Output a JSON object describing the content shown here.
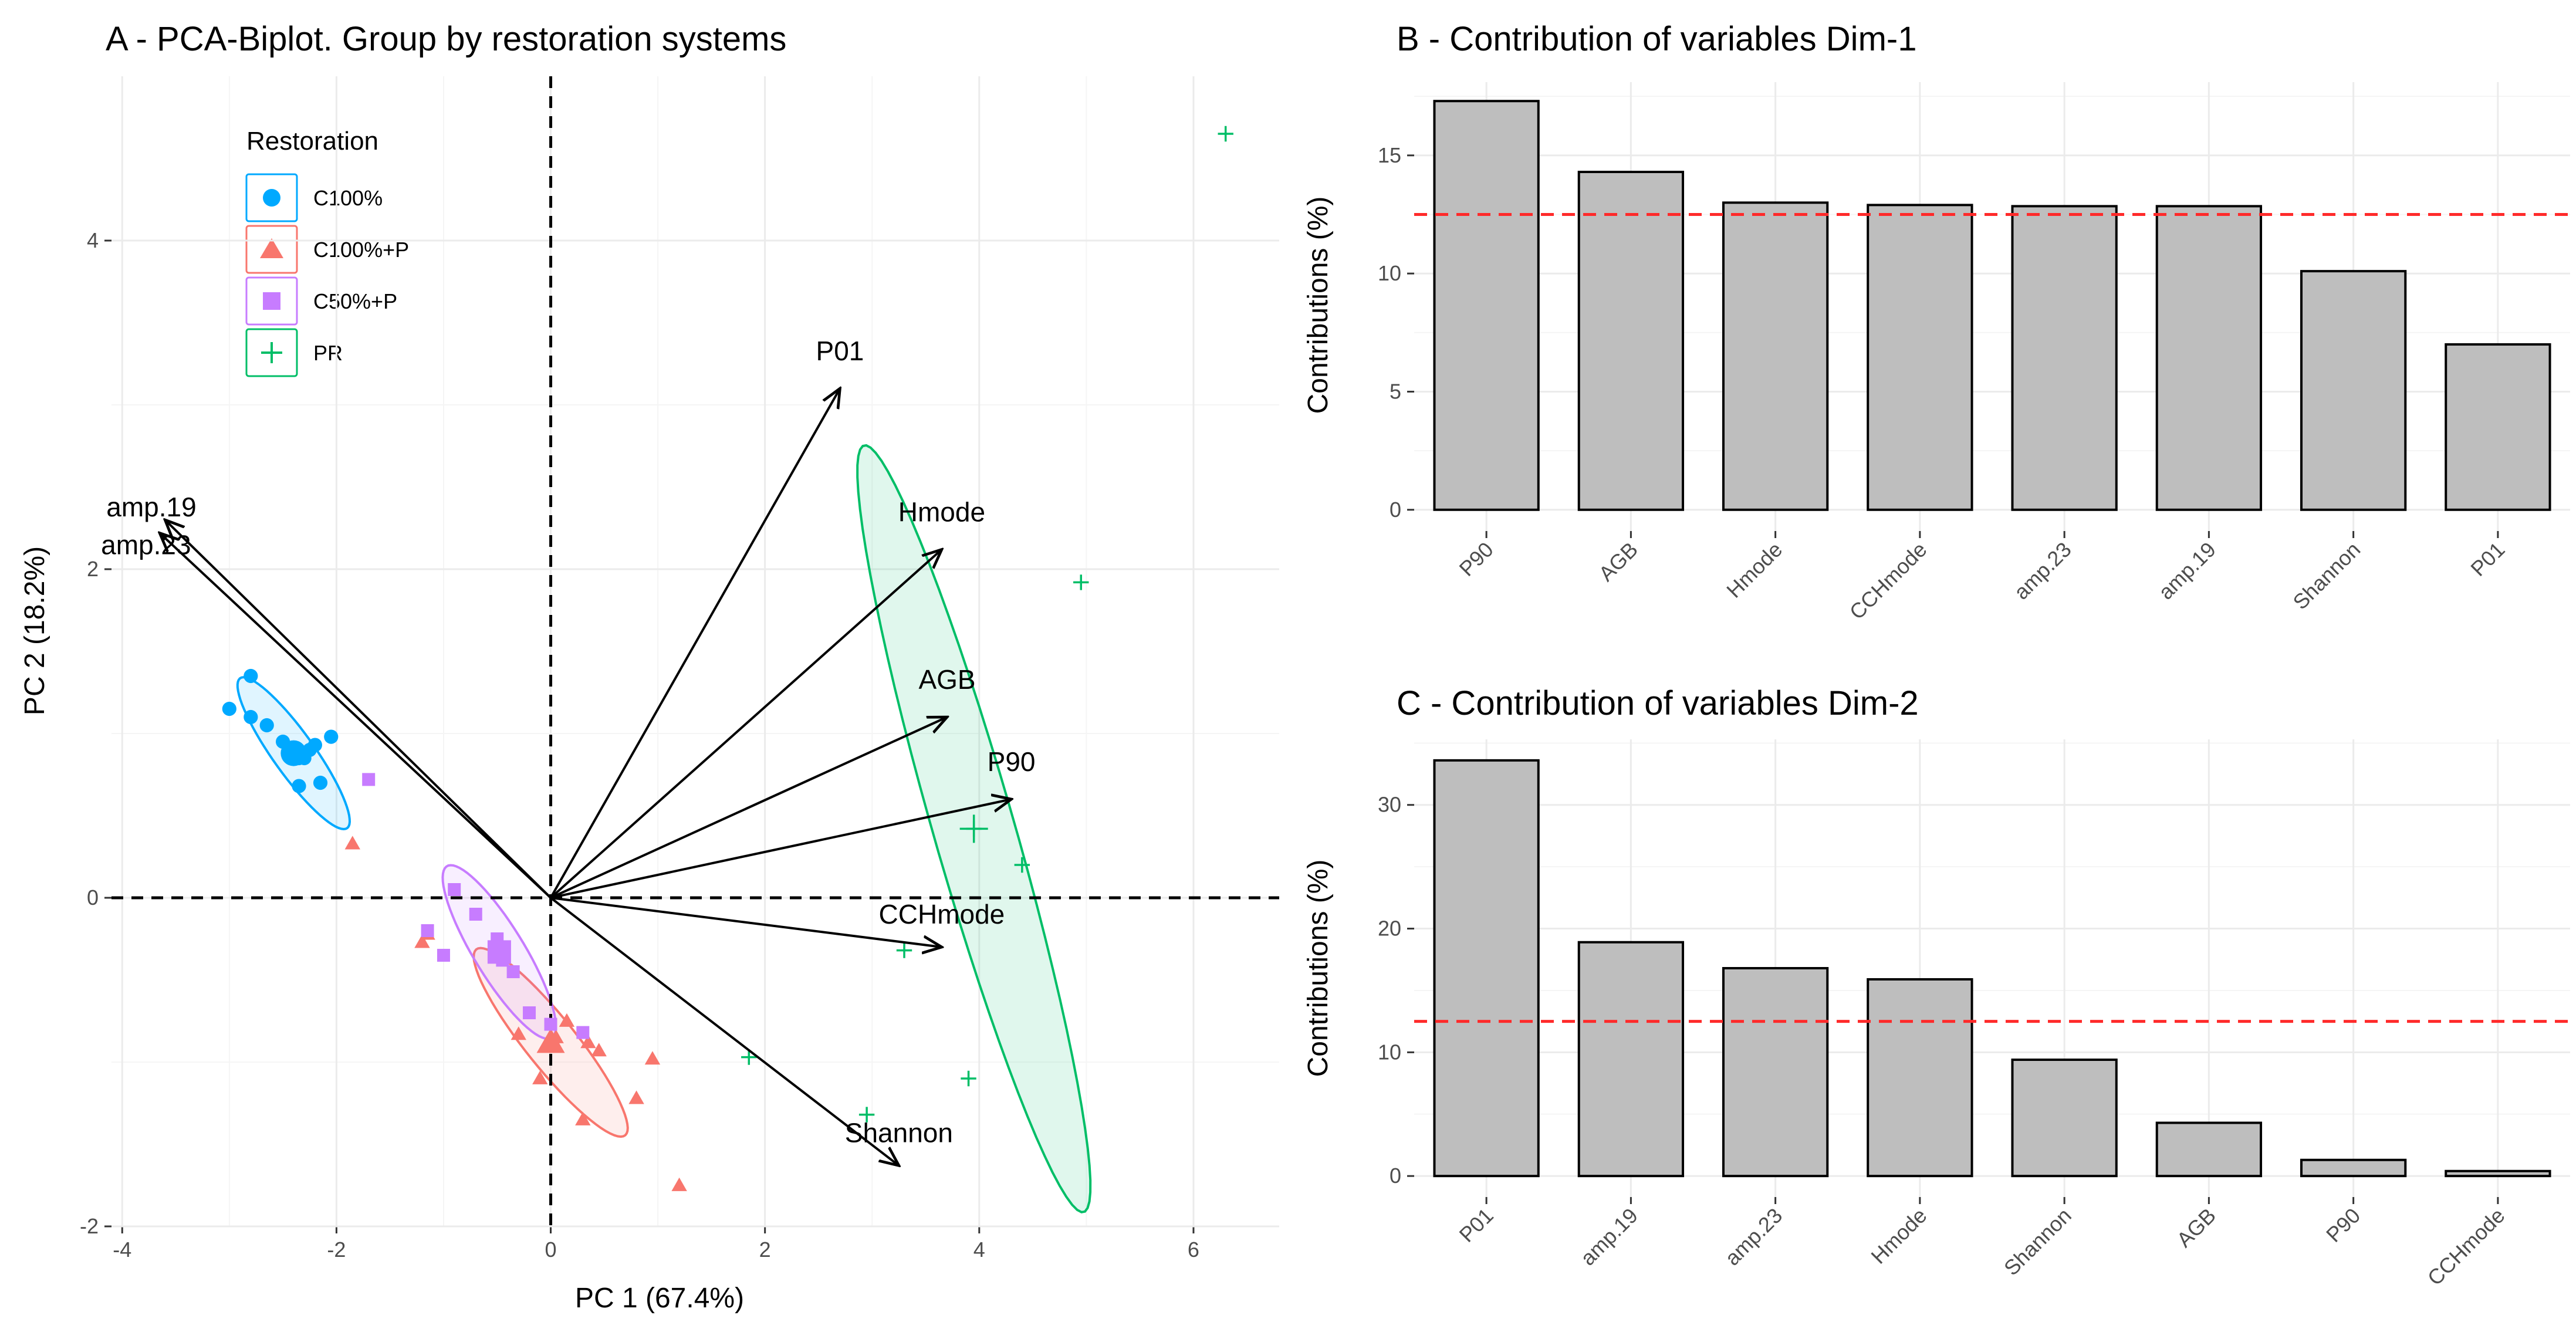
{
  "chart_data": [
    {
      "type": "scatter",
      "title": "A - PCA-Biplot. Group by restoration systems",
      "xlabel": "PC 1 (67.4%)",
      "ylabel": "PC 2 (18.2%)",
      "xlim": [
        -4.1,
        6.8
      ],
      "ylim": [
        -2.0,
        5.0
      ],
      "x_ticks": [
        -4,
        -2,
        0,
        2,
        4,
        6
      ],
      "y_ticks": [
        -2,
        0,
        2,
        4
      ],
      "x_tick_labels": [
        "-4",
        "-2",
        "0",
        "2",
        "4",
        "6"
      ],
      "y_tick_labels": [
        "-2",
        "0",
        "2",
        "4"
      ],
      "legend": {
        "title": "Restoration",
        "position": "top-left",
        "entries": [
          {
            "name": "C100%",
            "shape": "circle",
            "color": "#00a9ff"
          },
          {
            "name": "C100%+P",
            "shape": "triangle",
            "color": "#f8766d"
          },
          {
            "name": "C50%+P",
            "shape": "square",
            "color": "#c77cff"
          },
          {
            "name": "PR",
            "shape": "cross",
            "color": "#00be67"
          }
        ]
      },
      "groups": [
        {
          "name": "C100%",
          "color": "#00a9ff",
          "shape": "circle",
          "points": [
            [
              -2.8,
              1.35
            ],
            [
              -3.0,
              1.15
            ],
            [
              -2.8,
              1.1
            ],
            [
              -2.65,
              1.05
            ],
            [
              -2.5,
              0.95
            ],
            [
              -2.4,
              0.9
            ],
            [
              -2.3,
              0.88
            ],
            [
              -2.2,
              0.93
            ],
            [
              -2.05,
              0.98
            ],
            [
              -2.3,
              0.85
            ],
            [
              -2.35,
              0.68
            ],
            [
              -2.15,
              0.7
            ],
            [
              -2.25,
              0.9
            ],
            [
              -2.35,
              0.85
            ]
          ],
          "ellipse": {
            "cx": -2.4,
            "cy": 0.88,
            "rx": 0.68,
            "ry": 0.16,
            "angle_deg": -41
          }
        },
        {
          "name": "C100%+P",
          "color": "#f8766d",
          "shape": "triangle",
          "points": [
            [
              -1.85,
              0.33
            ],
            [
              -1.2,
              -0.27
            ],
            [
              -1.15,
              -0.22
            ],
            [
              -0.3,
              -0.83
            ],
            [
              0.05,
              -0.85
            ],
            [
              0.15,
              -0.75
            ],
            [
              0.45,
              -0.93
            ],
            [
              0.35,
              -0.88
            ],
            [
              0.95,
              -0.98
            ],
            [
              0.8,
              -1.22
            ],
            [
              0.3,
              -1.35
            ],
            [
              -0.1,
              -1.1
            ],
            [
              1.2,
              -1.75
            ],
            [
              0.0,
              -0.88
            ]
          ],
          "ellipse": {
            "cx": 0.0,
            "cy": -0.88,
            "rx": 0.9,
            "ry": 0.19,
            "angle_deg": -38
          }
        },
        {
          "name": "C50%+P",
          "color": "#c77cff",
          "shape": "square",
          "points": [
            [
              -1.7,
              0.72
            ],
            [
              -0.9,
              0.05
            ],
            [
              -0.7,
              -0.1
            ],
            [
              -1.15,
              -0.2
            ],
            [
              -1.0,
              -0.35
            ],
            [
              -0.5,
              -0.25
            ],
            [
              -0.45,
              -0.38
            ],
            [
              -0.35,
              -0.45
            ],
            [
              -0.2,
              -0.7
            ],
            [
              0.0,
              -0.77
            ],
            [
              0.3,
              -0.82
            ],
            [
              -0.5,
              -0.32
            ]
          ],
          "ellipse": {
            "cx": -0.48,
            "cy": -0.33,
            "rx": 0.72,
            "ry": 0.2,
            "angle_deg": -45
          }
        },
        {
          "name": "PR",
          "color": "#00be67",
          "shape": "cross",
          "points": [
            [
              6.3,
              4.65
            ],
            [
              4.95,
              1.92
            ],
            [
              4.4,
              0.2
            ],
            [
              3.9,
              -1.1
            ],
            [
              3.3,
              -0.32
            ],
            [
              1.85,
              -0.97
            ],
            [
              2.95,
              -1.32
            ],
            [
              3.95,
              0.42
            ]
          ],
          "ellipse": {
            "cx": 3.95,
            "cy": 0.42,
            "rx": 2.55,
            "ry": 0.36,
            "angle_deg": -66
          }
        }
      ],
      "variables": [
        {
          "name": "P01",
          "x": 2.7,
          "y": 3.1
        },
        {
          "name": "amp.19",
          "x": -3.6,
          "y": 2.3
        },
        {
          "name": "amp.23",
          "x": -3.65,
          "y": 2.22
        },
        {
          "name": "Hmode",
          "x": 3.65,
          "y": 2.12
        },
        {
          "name": "AGB",
          "x": 3.7,
          "y": 1.1
        },
        {
          "name": "P90",
          "x": 4.3,
          "y": 0.6
        },
        {
          "name": "CCHmode",
          "x": 3.65,
          "y": -0.3
        },
        {
          "name": "Shannon",
          "x": 3.25,
          "y": -1.63
        }
      ]
    },
    {
      "type": "bar",
      "title": "B - Contribution of variables Dim-1",
      "xlabel": "",
      "ylabel": "Contributions (%)",
      "categories": [
        "P90",
        "AGB",
        "Hmode",
        "CCHmode",
        "amp.23",
        "amp.19",
        "Shannon",
        "P01"
      ],
      "values": [
        17.3,
        14.3,
        13.0,
        12.9,
        12.85,
        12.85,
        10.1,
        7.0
      ],
      "ylim": [
        -0.9,
        18.1
      ],
      "y_ticks": [
        0,
        5,
        10,
        15
      ],
      "y_tick_labels": [
        "0",
        "5",
        "10",
        "15"
      ],
      "reference_line": 12.5
    },
    {
      "type": "bar",
      "title": "C - Contribution of variables Dim-2",
      "xlabel": "",
      "ylabel": "Contributions (%)",
      "categories": [
        "P01",
        "amp.19",
        "amp.23",
        "Hmode",
        "Shannon",
        "AGB",
        "P90",
        "CCHmode"
      ],
      "values": [
        33.6,
        18.9,
        16.8,
        15.9,
        9.4,
        4.3,
        1.3,
        0.4
      ],
      "ylim": [
        -1.7,
        35.3
      ],
      "y_ticks": [
        0,
        10,
        20,
        30
      ],
      "y_tick_labels": [
        "0",
        "10",
        "20",
        "30"
      ],
      "reference_line": 12.5
    }
  ]
}
